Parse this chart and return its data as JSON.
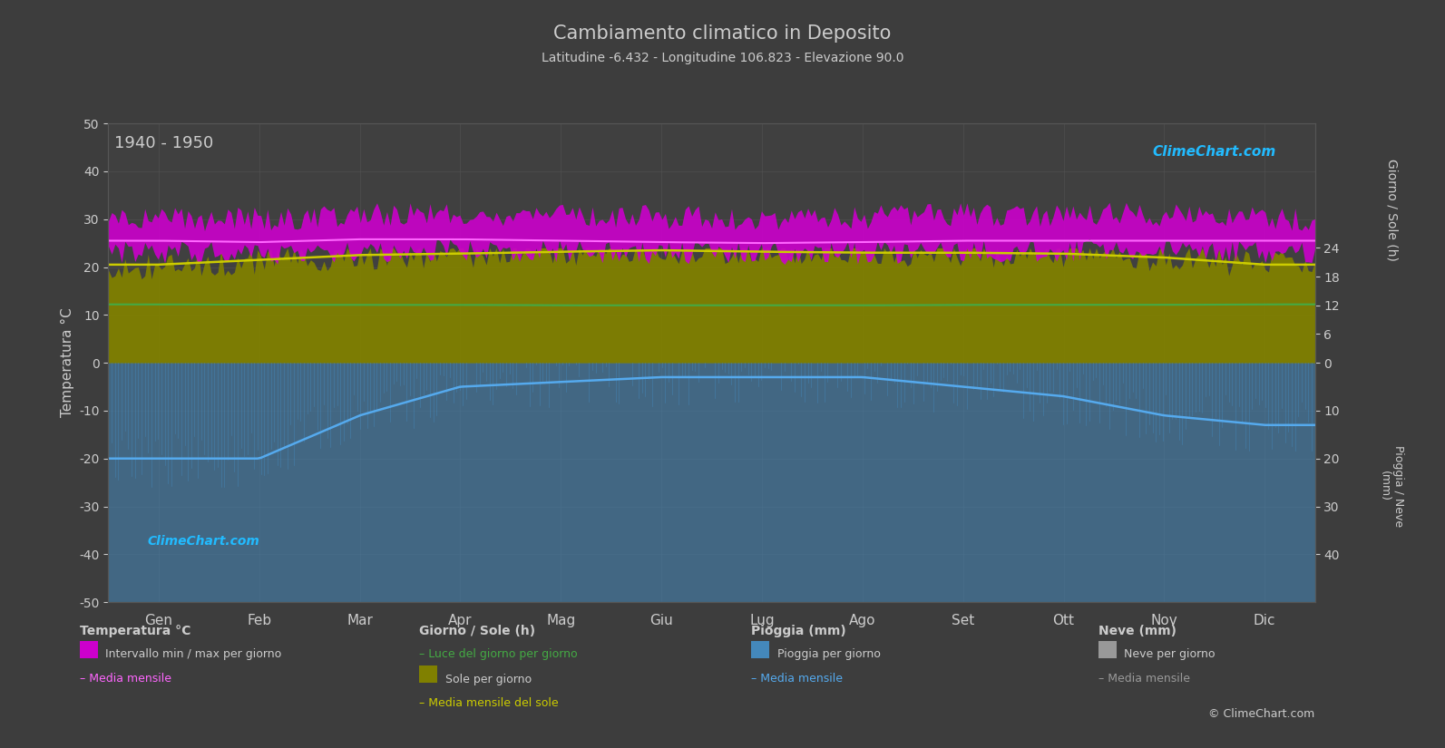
{
  "title": "Cambiamento climatico in Deposito",
  "subtitle": "Latitudine -6.432 - Longitudine 106.823 - Elevazione 90.0",
  "year_range": "1940 - 1950",
  "xlabel_months": [
    "Gen",
    "Feb",
    "Mar",
    "Apr",
    "Mag",
    "Giu",
    "Lug",
    "Ago",
    "Set",
    "Ott",
    "Nov",
    "Dic"
  ],
  "temp_ylim": [
    -50,
    50
  ],
  "background_color": "#3d3d3d",
  "plot_bg_color": "#404040",
  "grid_color": "#555555",
  "temp_min_monthly": [
    23.0,
    23.0,
    23.5,
    23.5,
    23.5,
    23.0,
    23.0,
    23.0,
    23.5,
    23.5,
    23.5,
    23.0
  ],
  "temp_max_monthly": [
    30.0,
    30.0,
    31.0,
    31.0,
    31.0,
    30.5,
    30.0,
    30.5,
    31.0,
    31.0,
    31.0,
    30.0
  ],
  "temp_mean_monthly": [
    25.5,
    25.2,
    25.8,
    25.8,
    25.5,
    25.2,
    25.0,
    25.2,
    25.5,
    25.5,
    25.5,
    25.5
  ],
  "sun_hours_monthly": [
    12.2,
    12.1,
    12.1,
    12.1,
    12.0,
    12.0,
    12.0,
    12.0,
    12.1,
    12.1,
    12.1,
    12.2
  ],
  "sun_shine_monthly": [
    20.5,
    21.5,
    22.5,
    22.8,
    23.2,
    23.5,
    23.2,
    23.0,
    23.0,
    22.8,
    22.0,
    20.5
  ],
  "rain_monthly_mean_mm": [
    200,
    200,
    110,
    50,
    40,
    30,
    30,
    30,
    50,
    70,
    110,
    130
  ],
  "rain_scale": 0.1,
  "sun_scale": 1.0,
  "text_color": "#cccccc",
  "magenta_color": "#cc00cc",
  "magenta_fill": "#cc00cc",
  "yellow_color": "#cccc00",
  "olive_color": "#808000",
  "blue_color": "#4488bb",
  "blue_line_color": "#55aaee",
  "green_color": "#44aa44",
  "pink_line_color": "#ff66ff",
  "gray_neve": "#999999"
}
